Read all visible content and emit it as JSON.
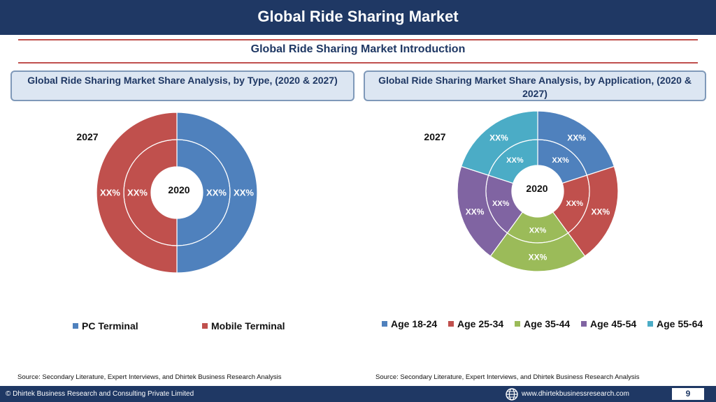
{
  "header": {
    "title": "Global Ride Sharing Market"
  },
  "subtitle": "Global Ride Sharing Market  Introduction",
  "left_panel": {
    "title": "Global Ride Sharing Market  Share Analysis, by Type, (2020 & 2027)"
  },
  "right_panel": {
    "title": "Global Ride Sharing Market  Share Analysis, by Application, (2020 & 2027)"
  },
  "chart_data": [
    {
      "type": "pie",
      "subtype": "doughnut",
      "title": "Global Ride Sharing Market  Share Analysis, by Type, (2020 & 2027)",
      "rings": [
        "2020",
        "2027"
      ],
      "ring_labels": {
        "inner": "2020",
        "outer": "2027"
      },
      "categories": [
        "PC Terminal",
        "Mobile Terminal"
      ],
      "colors": [
        "#4f81bd",
        "#c0504d"
      ],
      "series": [
        {
          "name": "2020",
          "values": [
            50,
            50
          ],
          "labels": [
            "XX%",
            "XX%"
          ]
        },
        {
          "name": "2027",
          "values": [
            50,
            50
          ],
          "labels": [
            "XX%",
            "XX%"
          ]
        }
      ],
      "legend": "bottom"
    },
    {
      "type": "pie",
      "subtype": "doughnut",
      "title": "Global Ride Sharing Market  Share Analysis, by Application, (2020 & 2027)",
      "rings": [
        "2020",
        "2027"
      ],
      "ring_labels": {
        "inner": "2020",
        "outer": "2027"
      },
      "categories": [
        "Age 18-24",
        "Age 25-34",
        "Age 35-44",
        "Age 45-54",
        "Age 55-64"
      ],
      "colors": [
        "#4f81bd",
        "#c0504d",
        "#9bbb59",
        "#8064a2",
        "#4bacc6"
      ],
      "series": [
        {
          "name": "2020",
          "values": [
            20,
            20,
            20,
            20,
            20
          ],
          "labels": [
            "XX%",
            "XX%",
            "XX%",
            "XX%",
            "XX%"
          ]
        },
        {
          "name": "2027",
          "values": [
            20,
            20,
            20,
            20,
            20
          ],
          "labels": [
            "XX%",
            "XX%",
            "XX%",
            "XX%",
            "XX%"
          ]
        }
      ],
      "legend": "bottom"
    }
  ],
  "sources": [
    "Source: Secondary Literature, Expert Interviews, and Dhirtek Business Research Analysis",
    "Source: Secondary Literature, Expert Interviews, and Dhirtek Business Research Analysis"
  ],
  "footer": {
    "copyright": "© Dhirtek Business Research and Consulting Private Limited",
    "website": "www.dhirtekbusinessresearch.com",
    "page": "9",
    "globe_icon": "globe-icon"
  }
}
